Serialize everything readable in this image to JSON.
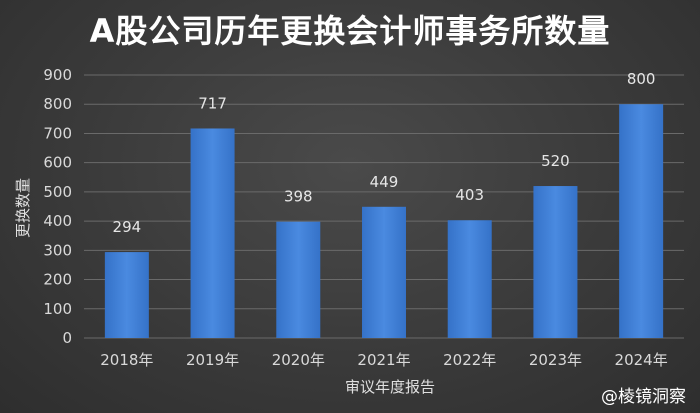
{
  "chart_data": {
    "type": "bar",
    "title": "A股公司历年更换会计师事务所数量",
    "xlabel": "审议年度报告",
    "ylabel": "更换数量",
    "categories": [
      "2018年",
      "2019年",
      "2020年",
      "2021年",
      "2022年",
      "2023年",
      "2024年"
    ],
    "values": [
      294,
      717,
      398,
      449,
      403,
      520,
      800
    ],
    "data_labels": [
      "294",
      "717",
      "398",
      "449",
      "403",
      "520",
      "800"
    ],
    "ylim": [
      0,
      900
    ],
    "yticks": [
      0,
      100,
      200,
      300,
      400,
      500,
      600,
      700,
      800,
      900
    ],
    "ytick_labels": [
      "0",
      "100",
      "200",
      "300",
      "400",
      "500",
      "600",
      "700",
      "800",
      "900"
    ],
    "grid": true,
    "bar_color": "#3f7fd6",
    "grid_color": "#6a6a6a"
  },
  "watermark": "@棱镜洞察"
}
